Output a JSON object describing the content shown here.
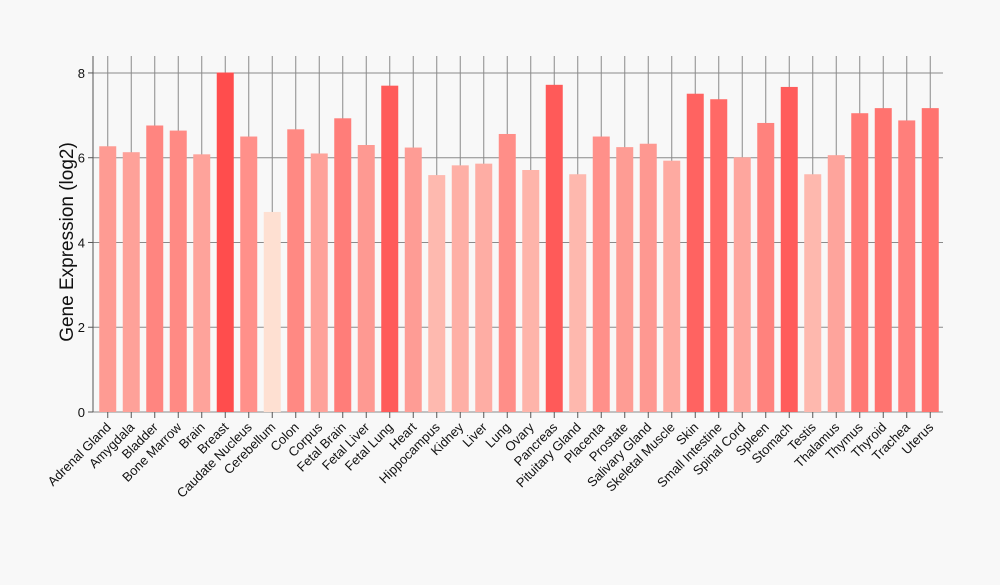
{
  "chart_data": {
    "type": "bar",
    "ylabel": "Gene Expression (log2)",
    "xlabel": "",
    "ylim": [
      0,
      8.4
    ],
    "yticks": [
      0,
      2,
      4,
      6,
      8
    ],
    "grid": true,
    "categories": [
      "Adrenal Gland",
      "Amygdala",
      "Bladder",
      "Bone Marrow",
      "Brain",
      "Breast",
      "Caudate Nucleus",
      "Cerebellum",
      "Colon",
      "Corpus",
      "Fetal Brain",
      "Fetal Liver",
      "Fetal Lung",
      "Heart",
      "Hippocampus",
      "Kidney",
      "Liver",
      "Lung",
      "Ovary",
      "Pancreas",
      "Pituitary Gland",
      "Placenta",
      "Prostate",
      "Salivary Gland",
      "Skeletal Muscle",
      "Skin",
      "Small Intestine",
      "Spinal Cord",
      "Spleen",
      "Stomach",
      "Testis",
      "Thalamus",
      "Thymus",
      "Thyroid",
      "Trachea",
      "Uterus"
    ],
    "values": [
      6.27,
      6.13,
      6.76,
      6.64,
      6.08,
      8.01,
      6.5,
      4.72,
      6.67,
      6.1,
      6.93,
      6.3,
      7.7,
      6.24,
      5.59,
      5.82,
      5.86,
      6.56,
      5.71,
      7.72,
      5.61,
      6.5,
      6.25,
      6.33,
      5.93,
      7.51,
      7.38,
      6.01,
      6.82,
      7.67,
      5.61,
      6.06,
      7.05,
      7.17,
      6.88,
      7.17
    ],
    "color_scale": {
      "low": "#fee0d2",
      "high": "#ff4d4d"
    }
  }
}
